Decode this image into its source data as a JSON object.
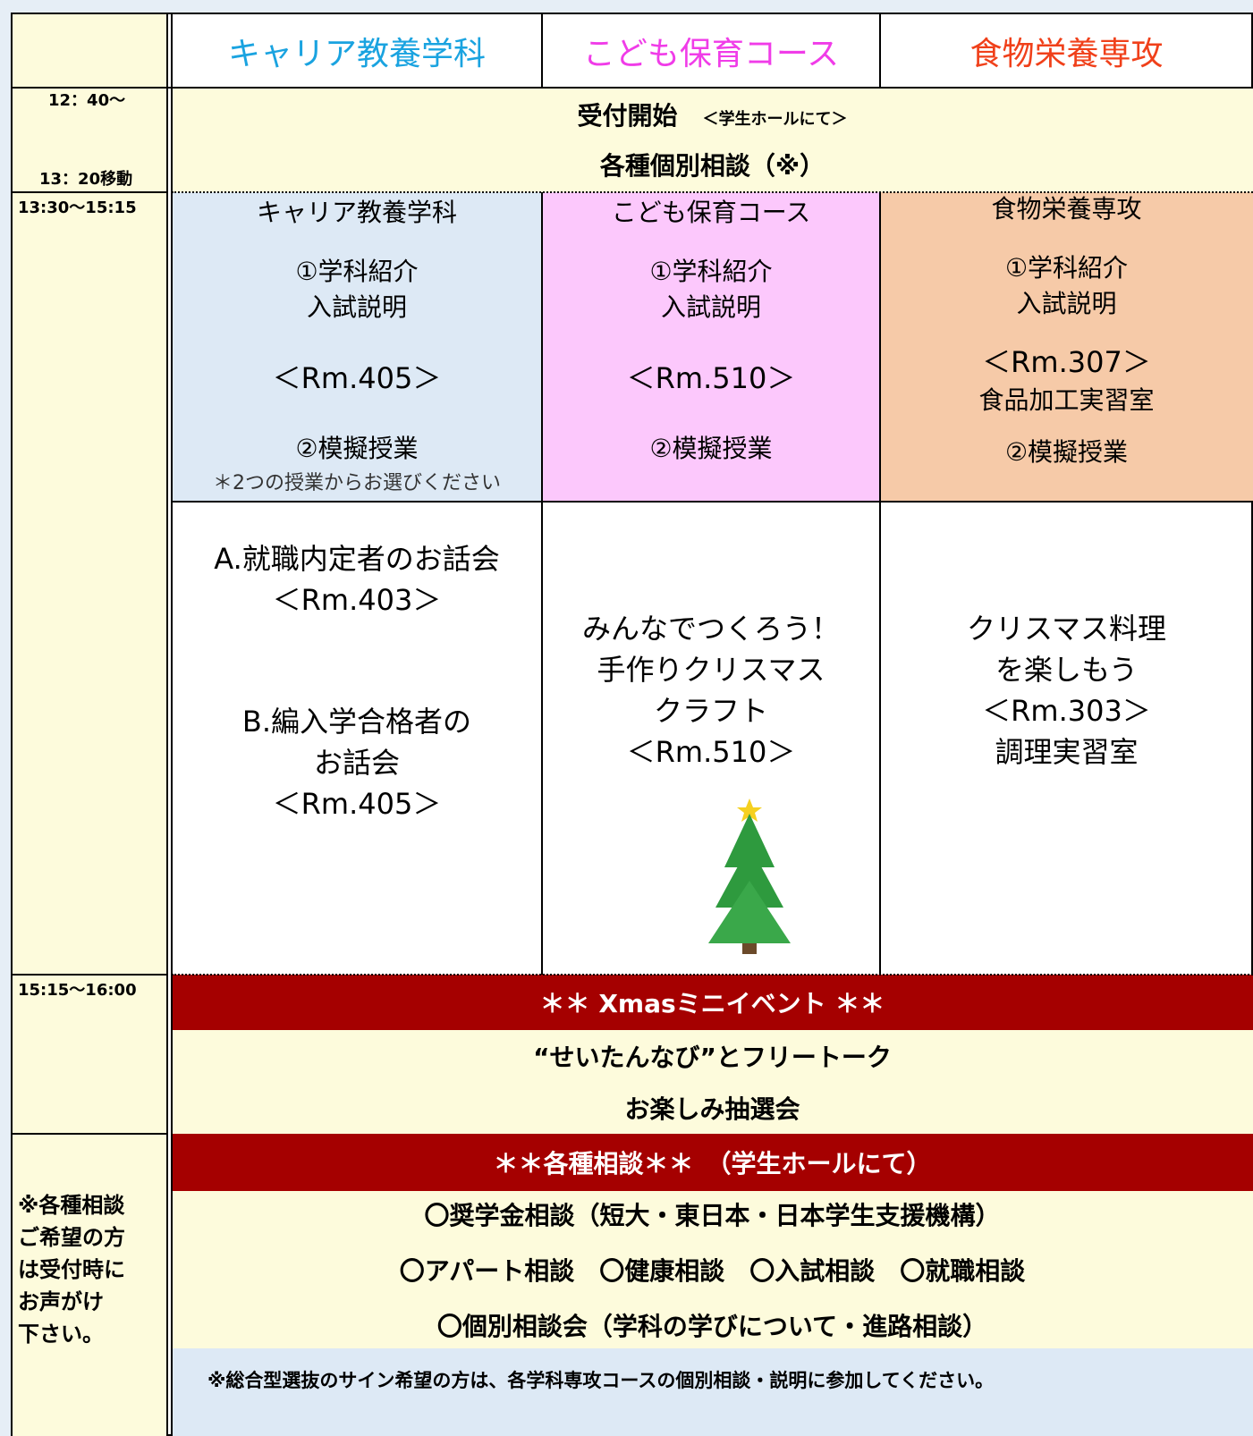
{
  "header": {
    "columns": [
      "キャリア教養学科",
      "こども保育コース",
      "食物栄養専攻"
    ]
  },
  "times": [
    "12：40～",
    "13：20移動",
    "13:30～15:15",
    "15:15～16:00"
  ],
  "reception": {
    "title": "受付開始",
    "place": "＜学生ホールにて＞",
    "consult": "各種個別相談（※）"
  },
  "session1": [
    {
      "lines": [
        "キャリア教養学科",
        "①学科紹介",
        "入試説明",
        "＜Rm.405＞",
        "②模擬授業"
      ],
      "note": "＊2つの授業からお選びください"
    },
    {
      "lines": [
        "こども保育コース",
        "①学科紹介",
        "入試説明",
        "＜Rm.510＞",
        "②模擬授業"
      ]
    },
    {
      "lines": [
        "食物栄養専攻",
        "①学科紹介",
        "入試説明",
        "＜Rm.307＞",
        "食品加工実習室",
        "②模擬授業"
      ]
    }
  ],
  "session2": [
    {
      "lines": [
        "A.就職内定者のお話会",
        "＜Rm.403＞",
        "B.編入学合格者の",
        "お話会",
        "＜Rm.405＞"
      ]
    },
    {
      "lines": [
        "みんなでつくろう！",
        "手作りクリスマス",
        "クラフト",
        "＜Rm.510＞"
      ]
    },
    {
      "lines": [
        "クリスマス料理",
        "を楽しもう",
        "＜Rm.303＞",
        "調理実習室"
      ]
    }
  ],
  "xmas": {
    "banner": "＊＊ Xmasミニイベント ＊＊",
    "lines": [
      "“せいたんなび”とフリートーク",
      "お楽しみ抽選会"
    ]
  },
  "consult": {
    "banner": "＊＊各種相談＊＊　（学生ホールにて）",
    "lines": [
      "〇奨学金相談（短大・東日本・日本学生支援機構）",
      "〇アパート相談　〇健康相談　〇入試相談　〇就職相談",
      "〇個別相談会（学科の学びについて・進路相談）"
    ],
    "note": [
      "※各種相談",
      "ご希望の方",
      "は受付時に",
      "お声がけ",
      "下さい。"
    ],
    "footer": "※総合型選抜のサイン希望の方は、各学科専攻コースの個別相談・説明に参加してください。"
  }
}
